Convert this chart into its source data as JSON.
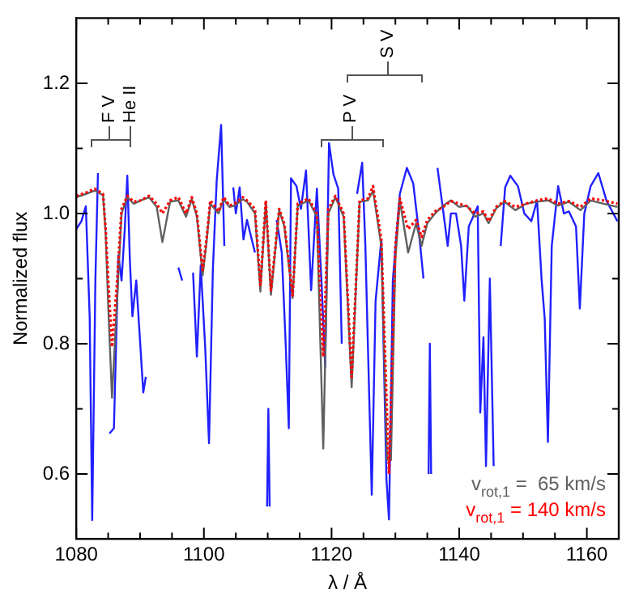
{
  "chart_data": {
    "type": "line",
    "xlabel": "λ / Å",
    "ylabel": "Normalized flux",
    "xlim": [
      1080,
      1165
    ],
    "ylim": [
      0.5,
      1.3
    ],
    "xticks": [
      1080,
      {
        "value": 1085,
        "label": null
      },
      1100,
      {
        "value": 1105,
        "label": null
      },
      {
        "value": 1090,
        "label": null
      },
      {
        "value": 1095,
        "label": null
      },
      {
        "value": 1110,
        "label": null
      },
      {
        "value": 1115,
        "label": null
      },
      1120,
      {
        "value": 1125,
        "label": null
      },
      {
        "value": 1130,
        "label": null
      },
      {
        "value": 1135,
        "label": null
      },
      1140,
      {
        "value": 1145,
        "label": null
      },
      {
        "value": 1150,
        "label": null
      },
      {
        "value": 1155,
        "label": null
      },
      1160
    ],
    "yticks": [
      0.6,
      {
        "value": 0.7,
        "label": null
      },
      0.8,
      {
        "value": 0.9,
        "label": null
      },
      {
        "value": 1,
        "label": "1.0"
      },
      {
        "value": 1.1,
        "label": null
      },
      1.2
    ],
    "grid": false,
    "legend": "bottom right",
    "marker": "none",
    "annotations": [
      "F V",
      "He II",
      "P V",
      "S V"
    ],
    "series": [
      {
        "color": "#2020ff",
        "line_style": "solid",
        "x": [
          1080,
          1080.8,
          1081.5,
          1082.1,
          1082.5,
          1083,
          1083.4,
          1084,
          1084.6,
          1085.2,
          1085.9,
          1086.6,
          1087.1,
          1087.6,
          1088,
          1088.4,
          1088.8,
          1089.4,
          1090.5,
          1090.9,
          1091.8,
          1095.1,
          1096,
          1096.6,
          1097.2,
          1097.8,
          1098.3,
          1098.9,
          1099.5,
          1100.2,
          1100.8,
          1101.4,
          1102,
          1102.7,
          1103.2,
          1103.7,
          1104.2,
          1104.6,
          1105,
          1105.6,
          1106.2,
          1106.75,
          1108,
          1109.3,
          1109.9,
          1110.1,
          1110.3,
          1110.8,
          1111.4,
          1112.2,
          1112.8,
          1113.3,
          1113.65,
          1114.5,
          1115.2,
          1116,
          1116.8,
          1117.7,
          1118.4,
          1119,
          1119.6,
          1120.3,
          1121.05,
          1121.6,
          1122.3,
          1123.2,
          1124,
          1124.8,
          1125.3,
          1125.7,
          1126.3,
          1126.9,
          1127.8,
          1128.6,
          1129,
          1129.6,
          1130.7,
          1131.8,
          1132.8,
          1133.7,
          1134.4,
          1134.9,
          1135.2,
          1135.4,
          1135.6,
          1135.8,
          1136.6,
          1137.5,
          1138.2,
          1138.7,
          1139.5,
          1140.3,
          1140.8,
          1141.5,
          1142.9,
          1143.3,
          1143.8,
          1144.2,
          1144.8,
          1145.4,
          1145.9,
          1146.5,
          1147.2,
          1148,
          1149.2,
          1150.2,
          1151.3,
          1152.2,
          1152.9,
          1153.4,
          1153.9,
          1154.5,
          1155.5,
          1156.4,
          1157.2,
          1158.3,
          1158.9,
          1159.6,
          1160.6,
          1161.8,
          1163.1,
          1164.8
        ],
        "values": [
          0.976,
          0.988,
          1.011,
          0.842,
          0.529,
          0.9,
          1.062,
          null,
          null,
          0.662,
          0.67,
          0.936,
          0.897,
          0.976,
          1.058,
          0.928,
          0.842,
          0.897,
          0.725,
          0.749,
          null,
          null,
          0.917,
          0.897,
          null,
          null,
          0.909,
          0.78,
          0.92,
          0.795,
          0.647,
          0.913,
          1.05,
          1.136,
          0.95,
          null,
          null,
          1.04,
          1.0,
          1.04,
          0.96,
          0.99,
          0.94,
          null,
          0.55,
          0.7,
          0.55,
          null,
          0.99,
          0.94,
          0.803,
          0.67,
          1.054,
          1.042,
          1.007,
          1.066,
          0.882,
          1.038,
          0.9,
          0.764,
          1.108,
          1.06,
          1.038,
          0.8,
          null,
          null,
          1.03,
          1.078,
          0.95,
          0.795,
          0.568,
          0.866,
          0.96,
          0.592,
          0.53,
          0.897,
          1.03,
          1.07,
          1.046,
          0.97,
          0.9,
          null,
          0.6,
          0.8,
          0.6,
          null,
          1.07,
          1.003,
          0.95,
          1.0,
          1.0,
          0.95,
          0.866,
          0.98,
          1.011,
          0.694,
          0.81,
          0.612,
          0.9,
          0.612,
          null,
          0.95,
          1.04,
          1.058,
          1.042,
          1.0,
          0.988,
          1.02,
          0.9,
          0.838,
          0.649,
          0.95,
          1.042,
          1.0,
          1.003,
          0.98,
          0.854,
          1.0,
          1.042,
          1.062,
          1.019,
          0.988
        ]
      },
      {
        "name": "v$_{rot,1}$ =  65 km/s",
        "color": "#606060",
        "line_style": "solid",
        "x": [
          1080,
          1081.5,
          1082.9,
          1084.2,
          1084.6,
          1085,
          1085.6,
          1086.3,
          1087.1,
          1088,
          1089,
          1090.1,
          1091.4,
          1092.6,
          1093.5,
          1094.7,
          1096,
          1097.2,
          1098.1,
          1098.9,
          1099.8,
          1100.4,
          1101,
          1102.3,
          1103.1,
          1104,
          1104.8,
          1106.1,
          1106.75,
          1108,
          1108.85,
          1109.7,
          1110.5,
          1111.8,
          1112.6,
          1113.9,
          1114.7,
          1116.4,
          1117.7,
          1118.7,
          1119.5,
          1120.6,
          1121.9,
          1123.15,
          1124.4,
          1125.7,
          1126.5,
          1127.8,
          1128.7,
          1129,
          1129.3,
          1130,
          1130.7,
          1132,
          1133.25,
          1134.1,
          1135,
          1136.2,
          1137.5,
          1138.7,
          1140,
          1141.2,
          1142.5,
          1143.8,
          1144.6,
          1145.8,
          1147.1,
          1148.8,
          1150.5,
          1152.2,
          1153.9,
          1155.5,
          1157.2,
          1159,
          1160.6,
          1162.6,
          1164.8
        ],
        "values": [
          1.025,
          1.03,
          1.035,
          1.028,
          0.97,
          0.86,
          0.717,
          0.85,
          1.0,
          1.025,
          1.015,
          1.02,
          1.025,
          1.01,
          0.956,
          1.018,
          1.02,
          0.995,
          1.022,
          0.995,
          0.905,
          0.955,
          1.015,
          1.0,
          1.022,
          1.01,
          1.012,
          1.022,
          1.018,
          1.0,
          0.88,
          1.018,
          0.875,
          1.005,
          0.98,
          0.87,
          1.012,
          1.02,
          0.995,
          0.639,
          1.0,
          1.025,
          0.995,
          0.733,
          1.018,
          1.02,
          1.035,
          0.95,
          0.62,
          null,
          0.62,
          0.93,
          1.02,
          0.94,
          0.985,
          0.95,
          0.985,
          1.0,
          1.012,
          1.02,
          1.01,
          1.012,
          0.995,
          1.0,
          0.985,
          1.008,
          1.018,
          1.005,
          1.015,
          1.018,
          1.02,
          1.012,
          1.018,
          1.005,
          1.02,
          1.015,
          1.01
        ]
      },
      {
        "name": "v$_{rot,1}$ = 140 km/s",
        "color": "#ff0000",
        "line_style": "dotted",
        "x": [
          1080,
          1081.5,
          1082.9,
          1084.2,
          1084.6,
          1085,
          1085.6,
          1086.3,
          1087.1,
          1088,
          1089,
          1090.1,
          1091.4,
          1092.6,
          1093.5,
          1094.7,
          1096,
          1097.2,
          1098.1,
          1098.9,
          1099.8,
          1100.4,
          1101,
          1102.3,
          1103.1,
          1104,
          1104.8,
          1106.1,
          1106.75,
          1108,
          1108.85,
          1109.7,
          1110.5,
          1111.8,
          1112.6,
          1113.9,
          1114.7,
          1116.4,
          1117.7,
          1118.7,
          1119.5,
          1120.6,
          1121.9,
          1123.15,
          1124.4,
          1125.7,
          1126.5,
          1127.8,
          1129,
          1130,
          1130.7,
          1132,
          1133.25,
          1134.1,
          1135,
          1136.2,
          1137.5,
          1138.7,
          1140,
          1141.2,
          1142.5,
          1143.8,
          1144.6,
          1145.8,
          1147.1,
          1148.8,
          1150.5,
          1152.2,
          1153.9,
          1155.5,
          1157.2,
          1159,
          1160.6,
          1162.6,
          1164.8
        ],
        "values": [
          1.027,
          1.032,
          1.038,
          1.03,
          0.976,
          0.9,
          0.795,
          0.882,
          1.007,
          1.027,
          1.018,
          1.02,
          1.027,
          1.015,
          1.0,
          1.02,
          1.025,
          1.0,
          1.025,
          1.0,
          0.913,
          0.96,
          1.02,
          1.003,
          1.025,
          1.012,
          1.015,
          1.025,
          1.02,
          1.007,
          0.89,
          1.02,
          0.882,
          1.007,
          0.984,
          0.874,
          1.015,
          1.023,
          1.0,
          0.78,
          1.007,
          1.027,
          1.0,
          0.749,
          1.02,
          1.023,
          1.042,
          0.96,
          0.6,
          0.95,
          1.023,
          0.976,
          0.99,
          0.964,
          0.99,
          1.003,
          1.01,
          1.019,
          1.015,
          1.011,
          1.0,
          1.003,
          0.988,
          1.01,
          1.019,
          1.01,
          1.015,
          1.02,
          1.023,
          1.015,
          1.019,
          1.01,
          1.023,
          1.02,
          1.015
        ]
      }
    ]
  }
}
